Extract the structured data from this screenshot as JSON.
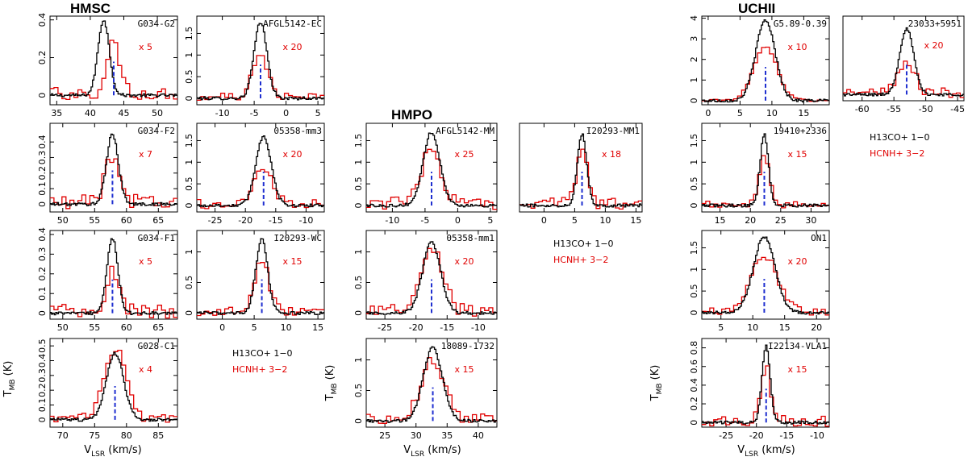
{
  "colors": {
    "h13co": "#000000",
    "hcnh": "#e00000",
    "vline": "#1f2fd0"
  },
  "groups": [
    {
      "title": "HMSC"
    },
    {
      "title": "HMPO"
    },
    {
      "title": "UCHII"
    }
  ],
  "legend": {
    "black_label": "H13CO+ 1−0",
    "red_label": "HCNH+ 3−2"
  },
  "axis_labels": {
    "y_main": "T",
    "y_sub": "MB",
    "y_unit": " (K)",
    "x_main": "V",
    "x_sub": "LSR",
    "x_unit": " (km/s)"
  },
  "chart_data": [
    {
      "type": "line",
      "group": "HMSC",
      "name": "G034-G2",
      "scale": "x 5",
      "xlim": [
        34,
        53
      ],
      "ylim": [
        -0.05,
        0.42
      ],
      "xticks": [
        35,
        40,
        45,
        50
      ],
      "yticks": [
        0,
        0.2,
        0.4
      ],
      "vlsr": 43.5,
      "peak_h13co": 0.4,
      "peak_hcnh_scaled": 0.26,
      "width": 2.0,
      "red_noise": 0.07
    },
    {
      "type": "line",
      "group": "HMSC",
      "name": "AFGL5142-EC",
      "scale": "x 20",
      "xlim": [
        -14,
        6
      ],
      "ylim": [
        -0.15,
        1.9
      ],
      "xticks": [
        -10,
        -5,
        0,
        5
      ],
      "yticks": [
        0,
        0.5,
        1,
        1.5
      ],
      "vlsr": -4.0,
      "peak_h13co": 1.75,
      "peak_hcnh_scaled": 0.95,
      "width": 2.4,
      "red_noise": 0.18
    },
    {
      "type": "line",
      "group": "UCHII",
      "name": "G5.89-0.39",
      "scale": "x 10",
      "xlim": [
        -1,
        19
      ],
      "ylim": [
        -0.2,
        4.1
      ],
      "xticks": [
        0,
        5,
        10,
        15
      ],
      "yticks": [
        0,
        1,
        2,
        3,
        4
      ],
      "vlsr": 9.0,
      "peak_h13co": 3.9,
      "peak_hcnh_scaled": 2.6,
      "width": 3.6,
      "red_noise": 0.1
    },
    {
      "type": "line",
      "group": "UCHII",
      "name": "23033+5951",
      "scale": "x 20",
      "xlim": [
        -63,
        -44
      ],
      "ylim": [
        -0.15,
        1.9
      ],
      "xticks": [
        -60,
        -55,
        -50,
        -45
      ],
      "yticks": [],
      "vlsr": -53.0,
      "peak_h13co": 1.6,
      "peak_hcnh_scaled": 0.75,
      "width": 2.6,
      "red_noise": 0.25
    },
    {
      "type": "line",
      "group": "HMSC",
      "name": "G034-F2",
      "scale": "x 7",
      "xlim": [
        48,
        68
      ],
      "ylim": [
        -0.05,
        0.52
      ],
      "xticks": [
        50,
        55,
        60,
        65
      ],
      "yticks": [
        0,
        0.1,
        0.2,
        0.3,
        0.4
      ],
      "vlsr": 57.8,
      "peak_h13co": 0.45,
      "peak_hcnh_scaled": 0.3,
      "width": 2.2,
      "red_noise": 0.1
    },
    {
      "type": "line",
      "group": "HMSC",
      "name": "05358-mm3",
      "scale": "x 20",
      "xlim": [
        -28,
        -7
      ],
      "ylim": [
        -0.15,
        1.9
      ],
      "xticks": [
        -25,
        -20,
        -15,
        -10
      ],
      "yticks": [
        0,
        0.5,
        1,
        1.5
      ],
      "vlsr": -17.0,
      "peak_h13co": 1.6,
      "peak_hcnh_scaled": 0.8,
      "width": 3.0,
      "red_noise": 0.22
    },
    {
      "type": "line",
      "group": "HMPO",
      "name": "AFGL5142-MM",
      "scale": "x 25",
      "xlim": [
        -14,
        6
      ],
      "ylim": [
        -0.15,
        1.9
      ],
      "xticks": [
        -10,
        -5,
        0,
        5
      ],
      "yticks": [
        0,
        0.5,
        1,
        1.5
      ],
      "vlsr": -4.0,
      "peak_h13co": 1.7,
      "peak_hcnh_scaled": 1.25,
      "width": 3.0,
      "red_noise": 0.3
    },
    {
      "type": "line",
      "group": "HMPO",
      "name": "I20293-MM1",
      "scale": "x 18",
      "xlim": [
        -4,
        16
      ],
      "ylim": [
        -0.15,
        1.9
      ],
      "xticks": [
        0,
        5,
        10,
        15
      ],
      "yticks": [],
      "vlsr": 6.2,
      "peak_h13co": 1.65,
      "peak_hcnh_scaled": 1.3,
      "width": 1.8,
      "red_noise": 0.28
    },
    {
      "type": "line",
      "group": "UCHII",
      "name": "19410+2336",
      "scale": "x 15",
      "xlim": [
        12,
        33
      ],
      "ylim": [
        -0.15,
        1.9
      ],
      "xticks": [
        15,
        20,
        25,
        30
      ],
      "yticks": [
        0,
        0.5,
        1,
        1.5
      ],
      "vlsr": 22.3,
      "peak_h13co": 1.65,
      "peak_hcnh_scaled": 1.2,
      "width": 1.6,
      "red_noise": 0.16
    },
    {
      "type": "line",
      "group": "HMSC",
      "name": "G034-F1",
      "scale": "x 5",
      "xlim": [
        48,
        68
      ],
      "ylim": [
        -0.03,
        0.42
      ],
      "xticks": [
        50,
        55,
        60,
        65
      ],
      "yticks": [
        0,
        0.1,
        0.2,
        0.3,
        0.4
      ],
      "vlsr": 57.8,
      "peak_h13co": 0.38,
      "peak_hcnh_scaled": 0.2,
      "width": 2.0,
      "red_noise": 0.07
    },
    {
      "type": "line",
      "group": "HMSC",
      "name": "I20293-WC",
      "scale": "x 15",
      "xlim": [
        -4,
        16
      ],
      "ylim": [
        -0.1,
        1.35
      ],
      "xticks": [
        0,
        5,
        10,
        15
      ],
      "yticks": [
        0,
        0.5,
        1
      ],
      "vlsr": 6.2,
      "peak_h13co": 1.2,
      "peak_hcnh_scaled": 0.85,
      "width": 2.2,
      "red_noise": 0.15
    },
    {
      "type": "line",
      "group": "HMPO",
      "name": "05358-mm1",
      "scale": "x 20",
      "xlim": [
        -28,
        -7
      ],
      "ylim": [
        -0.1,
        1.35
      ],
      "xticks": [
        -25,
        -20,
        -15,
        -10
      ],
      "yticks": [
        0,
        0.5,
        1
      ],
      "vlsr": -17.5,
      "peak_h13co": 1.15,
      "peak_hcnh_scaled": 1.05,
      "width": 3.4,
      "red_noise": 0.22
    },
    {
      "type": "line",
      "group": "UCHII",
      "name": "ON1",
      "scale": "x 20",
      "xlim": [
        2,
        22
      ],
      "ylim": [
        -0.15,
        1.9
      ],
      "xticks": [
        5,
        10,
        15,
        20
      ],
      "yticks": [
        0,
        0.5,
        1,
        1.5
      ],
      "vlsr": 11.8,
      "peak_h13co": 1.75,
      "peak_hcnh_scaled": 1.3,
      "width": 4.0,
      "red_noise": 0.18
    },
    {
      "type": "line",
      "group": "HMSC",
      "name": "G028-C1",
      "scale": "x 4",
      "xlim": [
        68,
        88
      ],
      "ylim": [
        -0.05,
        0.55
      ],
      "xticks": [
        70,
        75,
        80,
        85
      ],
      "yticks": [
        0,
        0.1,
        0.2,
        0.3,
        0.4,
        0.5
      ],
      "vlsr": 78.2,
      "peak_h13co": 0.45,
      "peak_hcnh_scaled": 0.48,
      "width": 3.2,
      "red_noise": 0.06
    },
    {
      "type": "line",
      "group": "HMPO",
      "name": "18089-1732",
      "scale": "x 15",
      "xlim": [
        22,
        43
      ],
      "ylim": [
        -0.1,
        1.35
      ],
      "xticks": [
        25,
        30,
        35,
        40
      ],
      "yticks": [
        0,
        0.5,
        1
      ],
      "vlsr": 32.7,
      "peak_h13co": 1.2,
      "peak_hcnh_scaled": 1.0,
      "width": 3.6,
      "red_noise": 0.18
    },
    {
      "type": "line",
      "group": "UCHII",
      "name": "I22134-VLA1",
      "scale": "x 15",
      "xlim": [
        -29,
        -8
      ],
      "ylim": [
        -0.05,
        0.9
      ],
      "xticks": [
        -25,
        -20,
        -15,
        -10
      ],
      "yticks": [
        0,
        0.2,
        0.4,
        0.6,
        0.8
      ],
      "vlsr": -18.4,
      "peak_h13co": 0.82,
      "peak_hcnh_scaled": 0.55,
      "width": 1.6,
      "red_noise": 0.13
    }
  ]
}
